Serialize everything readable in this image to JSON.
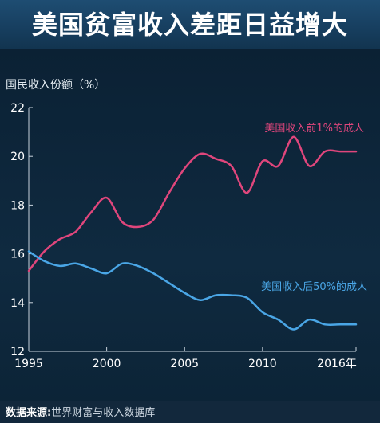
{
  "title": "美国贫富收入差距日益增大",
  "source_label": "数据来源:",
  "source_text": "世界财富与收入数据库",
  "colors": {
    "top_series": "#e0467c",
    "bottom_series": "#4aa6e6",
    "axis": "#c8d2dc",
    "text": "#ffffff"
  },
  "chart_data": {
    "type": "line",
    "title": "美国贫富收入差距日益增大",
    "ylabel": "国民收入份额（%）",
    "xlabel": "",
    "xlim": [
      1995,
      2016
    ],
    "ylim": [
      12,
      22
    ],
    "x_ticks": [
      "1995",
      "2000",
      "2005",
      "2010",
      "2016年"
    ],
    "x_tick_values": [
      1995,
      2000,
      2005,
      2010,
      2016
    ],
    "y_ticks": [
      "12",
      "14",
      "16",
      "18",
      "20",
      "22"
    ],
    "y_tick_values": [
      12,
      14,
      16,
      18,
      20,
      22
    ],
    "grid": false,
    "series": [
      {
        "name": "美国收入前1%的成人",
        "x": [
          1995,
          1996,
          1997,
          1998,
          1999,
          2000,
          2001,
          2002,
          2003,
          2004,
          2005,
          2006,
          2007,
          2008,
          2009,
          2010,
          2011,
          2012,
          2013,
          2014,
          2015,
          2016
        ],
        "values": [
          15.3,
          16.1,
          16.6,
          16.9,
          17.7,
          18.3,
          17.3,
          17.1,
          17.4,
          18.5,
          19.5,
          20.1,
          19.9,
          19.6,
          18.5,
          19.8,
          19.6,
          20.8,
          19.6,
          20.2,
          20.2,
          20.2
        ]
      },
      {
        "name": "美国收入后50%的成人",
        "x": [
          1995,
          1996,
          1997,
          1998,
          1999,
          2000,
          2001,
          2002,
          2003,
          2004,
          2005,
          2006,
          2007,
          2008,
          2009,
          2010,
          2011,
          2012,
          2013,
          2014,
          2015,
          2016
        ],
        "values": [
          16.1,
          15.7,
          15.5,
          15.6,
          15.4,
          15.2,
          15.6,
          15.5,
          15.2,
          14.8,
          14.4,
          14.1,
          14.3,
          14.3,
          14.2,
          13.6,
          13.3,
          12.9,
          13.3,
          13.1,
          13.1,
          13.1
        ]
      }
    ]
  }
}
